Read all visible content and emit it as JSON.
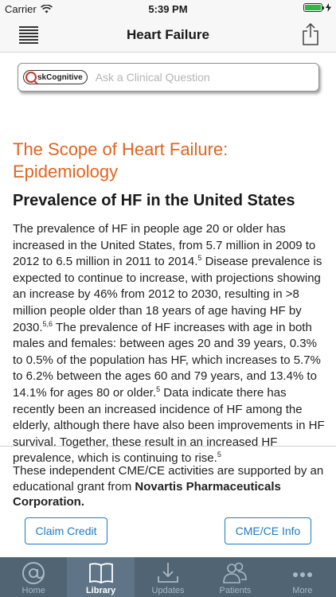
{
  "status_bar": {
    "carrier": "Carrier",
    "time": "5:39 PM",
    "battery_level": 1.0
  },
  "navbar": {
    "title": "Heart Failure",
    "menu_icon": "hamburger-menu-icon",
    "share_icon": "share-icon"
  },
  "search": {
    "logo_text": "Cognitive",
    "placeholder": "Ask a Clinical Question"
  },
  "article": {
    "section_title": "The Scope of Heart Failure: Epidemiology",
    "subsection_title": "Prevalence of HF in the United States",
    "paragraph": [
      {
        "text": "The prevalence of HF in people age 20 or older has increased in the United States, from 5.7 million in 2009 to 2012 to 6.5 million in 2011 to 2014."
      },
      {
        "sup": "5"
      },
      {
        "text": " Disease prevalence is expected to continue to increase, with projections showing an increase by 46% from 2012 to 2030, resulting in >8 million people older than 18 years of age having HF by 2030."
      },
      {
        "sup": "5,6"
      },
      {
        "text": " The prevalence of HF increases with age in both males and females: between ages 20 and 39 years, 0.3% to 0.5% of the population has HF, which increases to 5.7% to 6.2% between the ages 60 and 79 years, and 13.4% to 14.1% for ages 80 or older."
      },
      {
        "sup": "5"
      },
      {
        "text": " Data indicate there has recently been an increased incidence of HF among the elderly, although there have also been improvements in HF survival. Together, these result in an increased HF prevalence, which is continuing to rise."
      },
      {
        "sup": "5"
      }
    ]
  },
  "support": {
    "text": "These independent CME/CE activities are supported by an educational grant from ",
    "sponsor": "Novartis Pharmaceuticals Corporation."
  },
  "buttons": {
    "claim_credit": "Claim Credit",
    "cme_info": "CME/CE Info"
  },
  "tabbar": {
    "active": "Library",
    "tabs": [
      {
        "label": "Home",
        "icon": "at-sign-icon"
      },
      {
        "label": "Library",
        "icon": "book-icon"
      },
      {
        "label": "Updates",
        "icon": "download-icon"
      },
      {
        "label": "Patients",
        "icon": "patients-icon"
      },
      {
        "label": "More",
        "icon": "more-dots-icon"
      }
    ]
  },
  "colors": {
    "accent_orange": "#e0651f",
    "link_blue": "#1e7bc4",
    "tabbar_bg": "#506474"
  }
}
